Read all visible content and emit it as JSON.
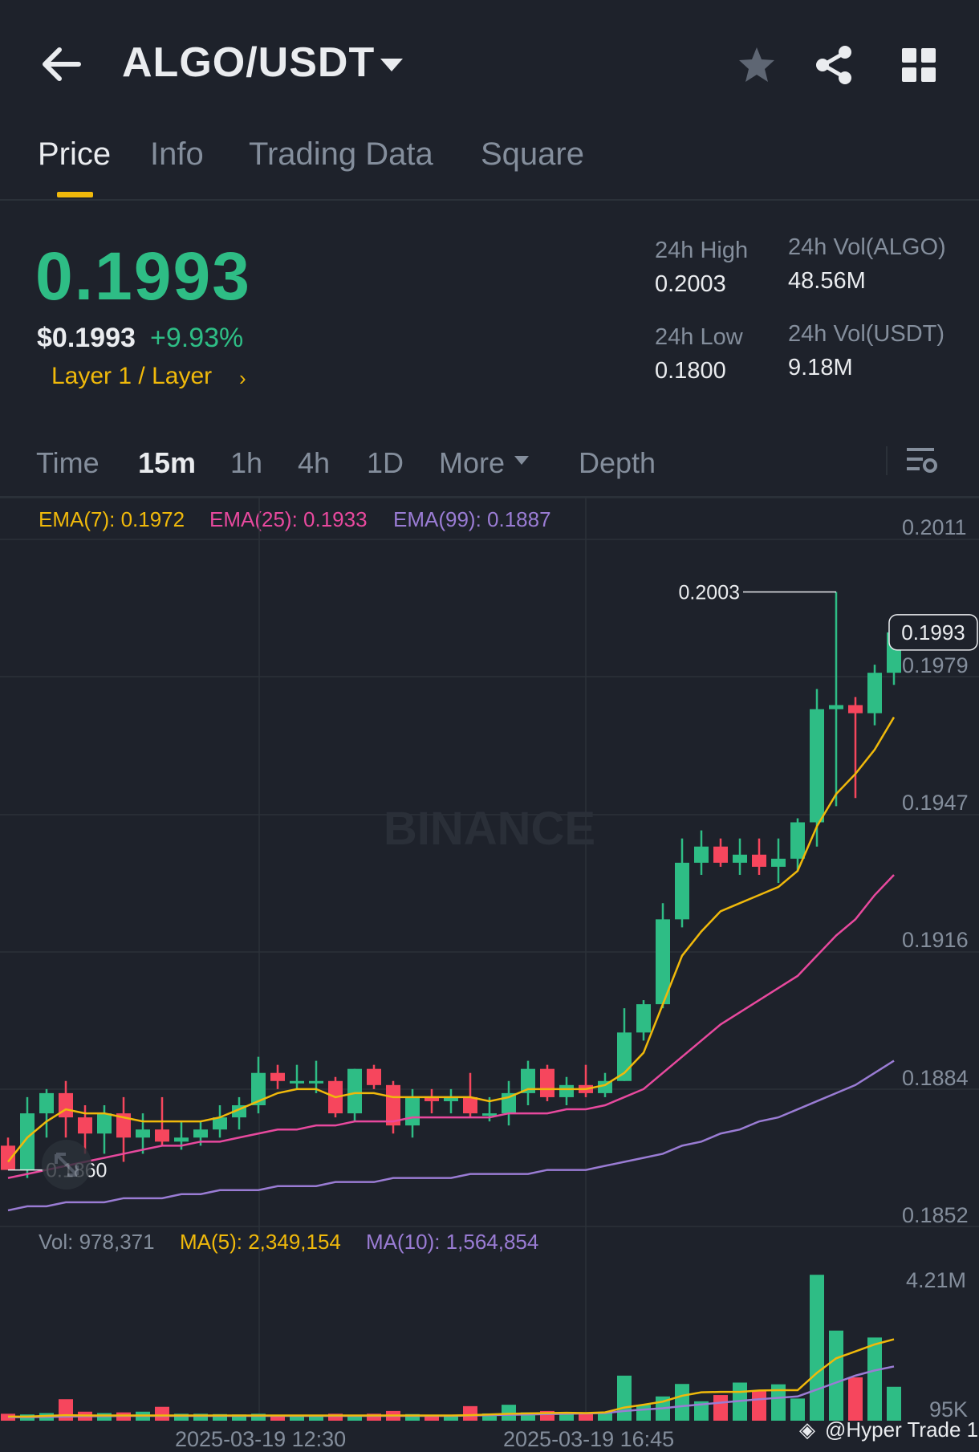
{
  "header": {
    "pair": "ALGO/USDT",
    "icons": [
      "back-arrow-icon",
      "caret-down-icon",
      "star-icon",
      "share-icon",
      "grid-icon"
    ]
  },
  "tabs": [
    {
      "label": "Price",
      "active": true
    },
    {
      "label": "Info",
      "active": false
    },
    {
      "label": "Trading Data",
      "active": false
    },
    {
      "label": "Square",
      "active": false
    }
  ],
  "ticker": {
    "last_price": "0.1993",
    "usd_price": "$0.1993",
    "change_pct": "+9.93%",
    "sector": "Layer 1 / Layer",
    "high_24h_label": "24h High",
    "high_24h_value": "0.2003",
    "low_24h_label": "24h Low",
    "low_24h_value": "0.1800",
    "vol_base_label": "24h Vol(ALGO)",
    "vol_base_value": "48.56M",
    "vol_quote_label": "24h Vol(USDT)",
    "vol_quote_value": "9.18M"
  },
  "intervals": [
    {
      "label": "Time",
      "active": false
    },
    {
      "label": "15m",
      "active": true
    },
    {
      "label": "1h",
      "active": false
    },
    {
      "label": "4h",
      "active": false
    },
    {
      "label": "1D",
      "active": false
    },
    {
      "label": "More",
      "active": false
    },
    {
      "label": "Depth",
      "active": false
    }
  ],
  "indicators": {
    "ema7": "EMA(7): 0.1972",
    "ema25": "EMA(25): 0.1933",
    "ema99": "EMA(99): 0.1887",
    "vol": "Vol: 978,371",
    "ma5": "MA(5): 2,349,154",
    "ma10": "MA(10): 1,564,854"
  },
  "colors": {
    "up": "#2ebd85",
    "down": "#f6465d",
    "ema7": "#f0b90b",
    "ema25": "#e8499e",
    "ema99": "#9a7cd4",
    "accent": "#f0b90b",
    "background": "#1e222b"
  },
  "axis": {
    "price_ticks": [
      "0.2011",
      "0.1979",
      "0.1947",
      "0.1916",
      "0.1884",
      "0.1852"
    ],
    "volume_ticks": [
      "4.21M",
      "95K"
    ],
    "time_ticks": [
      "2025-03-19 12:30",
      "2025-03-19 16:45"
    ]
  },
  "annotations": {
    "high_marker": "0.2003",
    "low_marker": "0.1860",
    "current_price_tag": "0.1993"
  },
  "watermark": "BINANCE",
  "credit": "@Hyper Trade 1",
  "chart_data": {
    "type": "candlestick",
    "price_range": [
      0.1848,
      0.2016
    ],
    "volume_range_k": [
      0,
      4400
    ],
    "candles": [
      {
        "o": 0.1866,
        "h": 0.1868,
        "c": 0.186,
        "l": 0.186,
        "v": 200
      },
      {
        "o": 0.186,
        "h": 0.1878,
        "c": 0.1874,
        "l": 0.1858,
        "v": 180
      },
      {
        "o": 0.1874,
        "h": 0.188,
        "c": 0.1879,
        "l": 0.1868,
        "v": 220
      },
      {
        "o": 0.1879,
        "h": 0.1882,
        "c": 0.1873,
        "l": 0.1868,
        "v": 620
      },
      {
        "o": 0.1873,
        "h": 0.1876,
        "c": 0.1869,
        "l": 0.1864,
        "v": 260
      },
      {
        "o": 0.1869,
        "h": 0.1876,
        "c": 0.1874,
        "l": 0.1864,
        "v": 220
      },
      {
        "o": 0.1874,
        "h": 0.1878,
        "c": 0.1868,
        "l": 0.1862,
        "v": 240
      },
      {
        "o": 0.1868,
        "h": 0.1874,
        "c": 0.187,
        "l": 0.1864,
        "v": 260
      },
      {
        "o": 0.187,
        "h": 0.1878,
        "c": 0.1867,
        "l": 0.1866,
        "v": 400
      },
      {
        "o": 0.1867,
        "h": 0.1872,
        "c": 0.1868,
        "l": 0.1865,
        "v": 200
      },
      {
        "o": 0.1868,
        "h": 0.1872,
        "c": 0.187,
        "l": 0.1866,
        "v": 200
      },
      {
        "o": 0.187,
        "h": 0.1876,
        "c": 0.1873,
        "l": 0.1868,
        "v": 190
      },
      {
        "o": 0.1873,
        "h": 0.1878,
        "c": 0.1876,
        "l": 0.187,
        "v": 180
      },
      {
        "o": 0.1876,
        "h": 0.1888,
        "c": 0.1884,
        "l": 0.1874,
        "v": 200
      },
      {
        "o": 0.1884,
        "h": 0.1886,
        "c": 0.1882,
        "l": 0.188,
        "v": 160
      },
      {
        "o": 0.1882,
        "h": 0.1886,
        "c": 0.1882,
        "l": 0.188,
        "v": 150
      },
      {
        "o": 0.1882,
        "h": 0.1887,
        "c": 0.1882,
        "l": 0.1879,
        "v": 150
      },
      {
        "o": 0.1882,
        "h": 0.1883,
        "c": 0.1874,
        "l": 0.1873,
        "v": 200
      },
      {
        "o": 0.1874,
        "h": 0.1885,
        "c": 0.1885,
        "l": 0.1872,
        "v": 160
      },
      {
        "o": 0.1885,
        "h": 0.1886,
        "c": 0.1881,
        "l": 0.188,
        "v": 200
      },
      {
        "o": 0.1881,
        "h": 0.1882,
        "c": 0.1871,
        "l": 0.1869,
        "v": 280
      },
      {
        "o": 0.1871,
        "h": 0.188,
        "c": 0.1878,
        "l": 0.1868,
        "v": 190
      },
      {
        "o": 0.1878,
        "h": 0.188,
        "c": 0.1877,
        "l": 0.1874,
        "v": 170
      },
      {
        "o": 0.1877,
        "h": 0.188,
        "c": 0.1878,
        "l": 0.1874,
        "v": 160
      },
      {
        "o": 0.1878,
        "h": 0.1884,
        "c": 0.1874,
        "l": 0.1873,
        "v": 420
      },
      {
        "o": 0.1874,
        "h": 0.1878,
        "c": 0.1874,
        "l": 0.1872,
        "v": 210
      },
      {
        "o": 0.1874,
        "h": 0.1882,
        "c": 0.1879,
        "l": 0.1871,
        "v": 460
      },
      {
        "o": 0.1879,
        "h": 0.1887,
        "c": 0.1885,
        "l": 0.1876,
        "v": 240
      },
      {
        "o": 0.1885,
        "h": 0.1886,
        "c": 0.1878,
        "l": 0.1877,
        "v": 280
      },
      {
        "o": 0.1878,
        "h": 0.1883,
        "c": 0.1881,
        "l": 0.1876,
        "v": 200
      },
      {
        "o": 0.1881,
        "h": 0.1886,
        "c": 0.1879,
        "l": 0.1878,
        "v": 210
      },
      {
        "o": 0.1879,
        "h": 0.1884,
        "c": 0.1882,
        "l": 0.1878,
        "v": 240
      },
      {
        "o": 0.1882,
        "h": 0.19,
        "c": 0.1894,
        "l": 0.1882,
        "v": 1300
      },
      {
        "o": 0.1894,
        "h": 0.1902,
        "c": 0.1901,
        "l": 0.1892,
        "v": 460
      },
      {
        "o": 0.1901,
        "h": 0.1926,
        "c": 0.1922,
        "l": 0.19,
        "v": 700
      },
      {
        "o": 0.1922,
        "h": 0.1942,
        "c": 0.1936,
        "l": 0.192,
        "v": 1060
      },
      {
        "o": 0.1936,
        "h": 0.1944,
        "c": 0.194,
        "l": 0.1933,
        "v": 560
      },
      {
        "o": 0.194,
        "h": 0.1942,
        "c": 0.1936,
        "l": 0.1935,
        "v": 740
      },
      {
        "o": 0.1936,
        "h": 0.1942,
        "c": 0.1938,
        "l": 0.1933,
        "v": 1100
      },
      {
        "o": 0.1938,
        "h": 0.1942,
        "c": 0.1935,
        "l": 0.1933,
        "v": 880
      },
      {
        "o": 0.1935,
        "h": 0.1942,
        "c": 0.1937,
        "l": 0.1931,
        "v": 1050
      },
      {
        "o": 0.1937,
        "h": 0.1947,
        "c": 0.1946,
        "l": 0.1934,
        "v": 640
      },
      {
        "o": 0.1946,
        "h": 0.1979,
        "c": 0.1974,
        "l": 0.194,
        "v": 4210
      },
      {
        "o": 0.1974,
        "h": 0.2003,
        "c": 0.1975,
        "l": 0.195,
        "v": 2600
      },
      {
        "o": 0.1975,
        "h": 0.1977,
        "c": 0.1973,
        "l": 0.1952,
        "v": 1250
      },
      {
        "o": 0.1973,
        "h": 0.1985,
        "c": 0.1983,
        "l": 0.197,
        "v": 2400
      },
      {
        "o": 0.1983,
        "h": 0.1996,
        "c": 0.1993,
        "l": 0.198,
        "v": 978
      }
    ],
    "ema7": [
      0.1862,
      0.1868,
      0.1872,
      0.1875,
      0.1874,
      0.1874,
      0.1873,
      0.1872,
      0.1872,
      0.1872,
      0.1872,
      0.1873,
      0.1875,
      0.1877,
      0.1879,
      0.188,
      0.188,
      0.1878,
      0.1879,
      0.1879,
      0.1878,
      0.1878,
      0.1878,
      0.1878,
      0.1878,
      0.1877,
      0.1878,
      0.188,
      0.188,
      0.188,
      0.188,
      0.1881,
      0.1884,
      0.1889,
      0.1901,
      0.1913,
      0.1919,
      0.1924,
      0.1926,
      0.1928,
      0.193,
      0.1934,
      0.1945,
      0.1953,
      0.1958,
      0.1964,
      0.1972
    ],
    "ema25": [
      0.1858,
      0.1859,
      0.186,
      0.1861,
      0.1862,
      0.1863,
      0.1864,
      0.1865,
      0.1866,
      0.1866,
      0.1867,
      0.1867,
      0.1868,
      0.1869,
      0.187,
      0.187,
      0.1871,
      0.1871,
      0.1872,
      0.1872,
      0.1872,
      0.1873,
      0.1873,
      0.1873,
      0.1873,
      0.1873,
      0.1874,
      0.1874,
      0.1874,
      0.1875,
      0.1875,
      0.1876,
      0.1878,
      0.188,
      0.1884,
      0.1888,
      0.1892,
      0.1896,
      0.1899,
      0.1902,
      0.1905,
      0.1908,
      0.1913,
      0.1918,
      0.1922,
      0.1928,
      0.1933
    ],
    "ema99": [
      0.185,
      0.1851,
      0.1851,
      0.1852,
      0.1852,
      0.1852,
      0.1853,
      0.1853,
      0.1853,
      0.1854,
      0.1854,
      0.1855,
      0.1855,
      0.1855,
      0.1856,
      0.1856,
      0.1856,
      0.1857,
      0.1857,
      0.1857,
      0.1858,
      0.1858,
      0.1858,
      0.1858,
      0.1859,
      0.1859,
      0.1859,
      0.1859,
      0.186,
      0.186,
      0.186,
      0.1861,
      0.1862,
      0.1863,
      0.1864,
      0.1866,
      0.1867,
      0.1869,
      0.187,
      0.1872,
      0.1873,
      0.1875,
      0.1877,
      0.1879,
      0.1881,
      0.1884,
      0.1887
    ],
    "vol_ma5": [
      120,
      120,
      140,
      160,
      150,
      150,
      150,
      150,
      150,
      150,
      150,
      150,
      150,
      150,
      150,
      150,
      150,
      150,
      150,
      150,
      150,
      150,
      150,
      150,
      160,
      180,
      200,
      210,
      220,
      230,
      220,
      240,
      380,
      460,
      550,
      720,
      820,
      830,
      830,
      870,
      880,
      880,
      1380,
      1800,
      2000,
      2200,
      2349
    ],
    "vol_ma10": [
      100,
      100,
      110,
      120,
      130,
      130,
      140,
      140,
      140,
      140,
      140,
      140,
      140,
      140,
      140,
      140,
      140,
      140,
      140,
      140,
      140,
      140,
      140,
      140,
      150,
      160,
      170,
      180,
      190,
      200,
      210,
      220,
      280,
      320,
      360,
      420,
      470,
      520,
      570,
      620,
      660,
      700,
      900,
      1100,
      1300,
      1450,
      1565
    ]
  }
}
